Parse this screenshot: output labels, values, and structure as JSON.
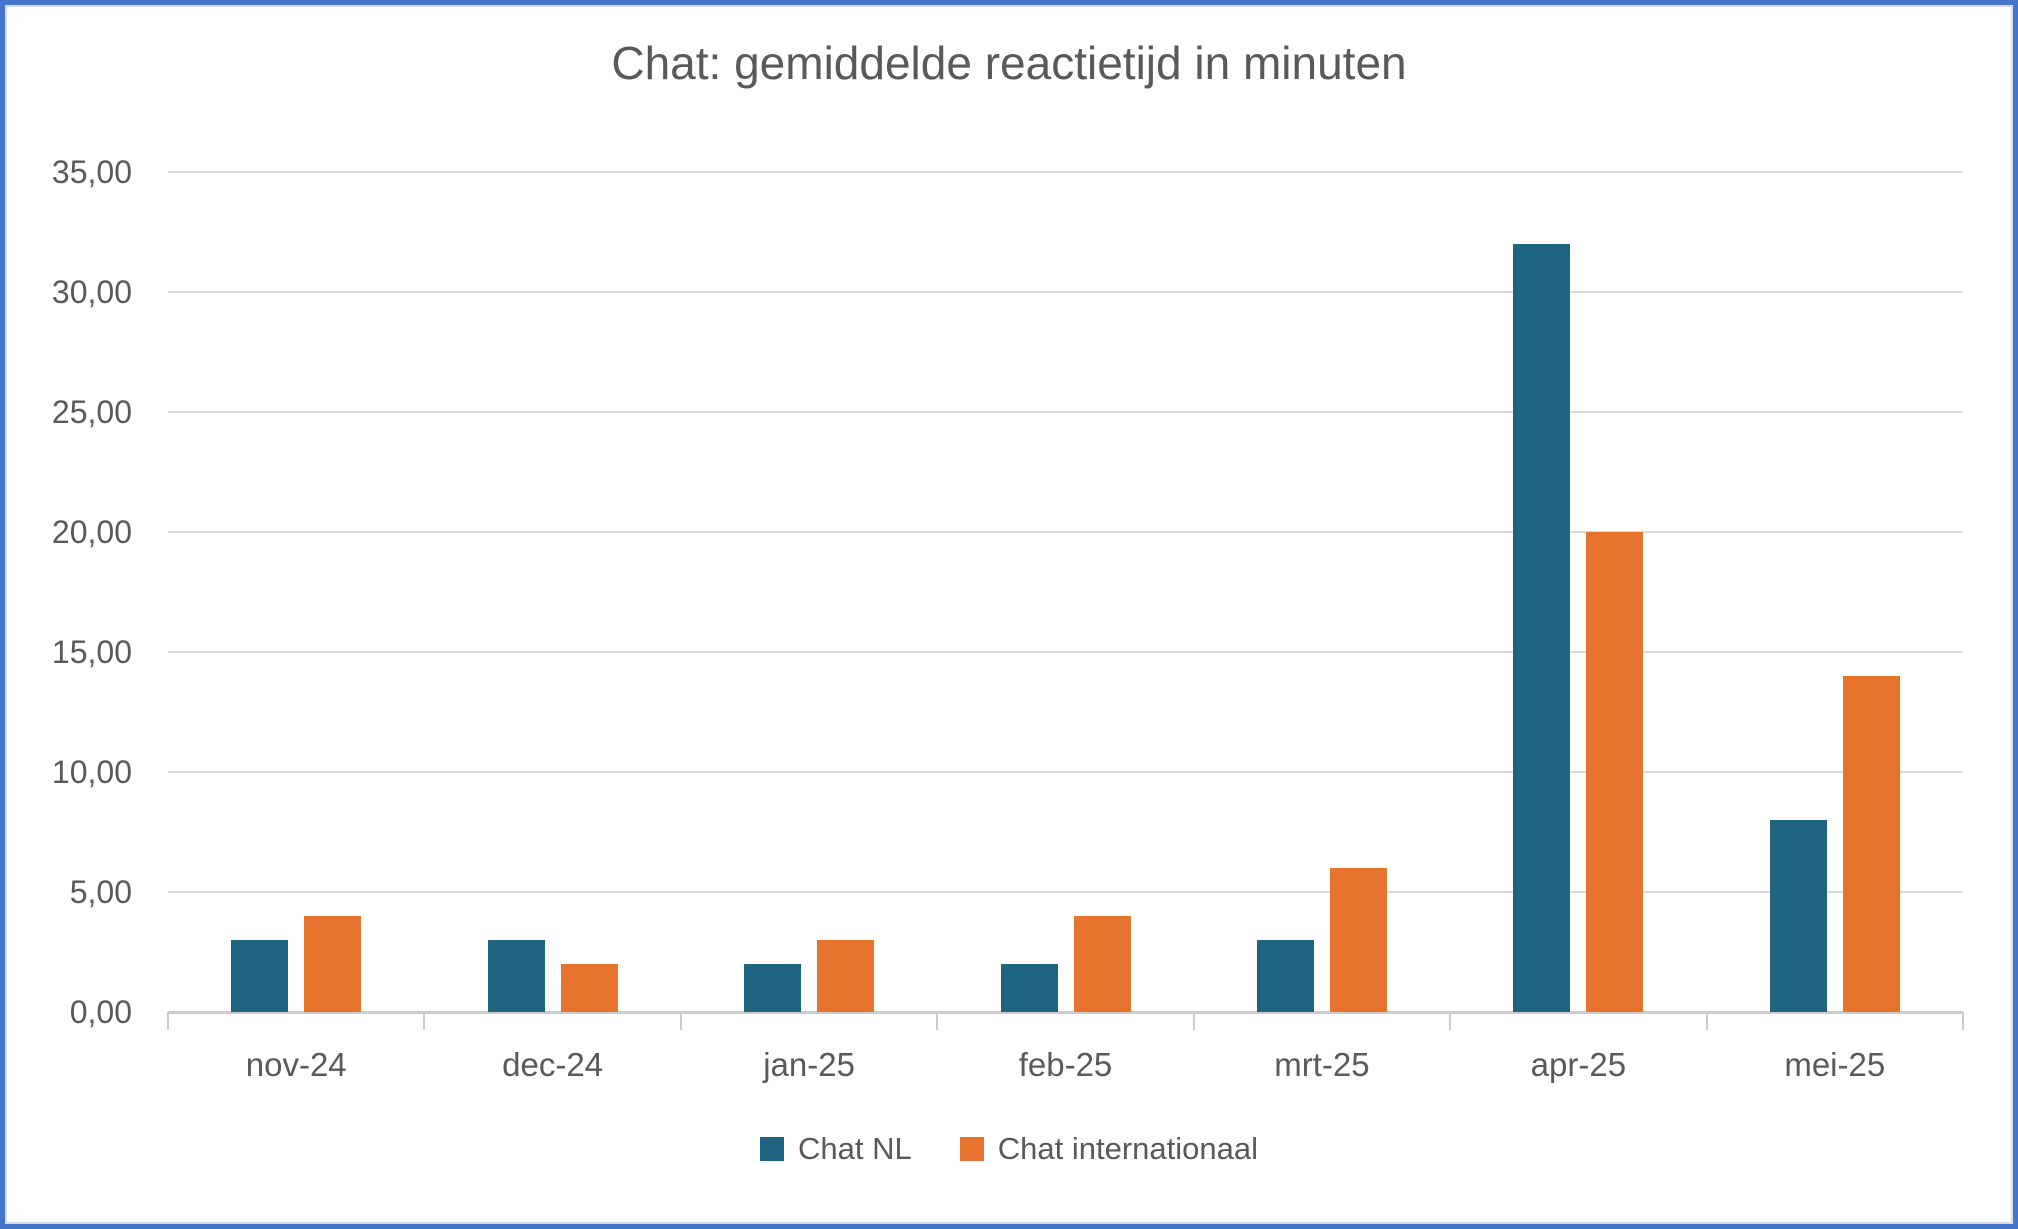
{
  "window": {
    "background": "#ffffff",
    "frame_border_color": "#4575c8",
    "inner_edge_color": "#d9dce8"
  },
  "chart_data": {
    "type": "bar",
    "title": "Chat: gemiddelde reactietijd in minuten",
    "categories": [
      "nov-24",
      "dec-24",
      "jan-25",
      "feb-25",
      "mrt-25",
      "apr-25",
      "mei-25"
    ],
    "series": [
      {
        "name": "Chat NL",
        "color": "#1E6581",
        "values": [
          3,
          3,
          2,
          2,
          3,
          32,
          8
        ]
      },
      {
        "name": "Chat internationaal",
        "color": "#E8732C",
        "values": [
          4,
          2,
          3,
          4,
          6,
          20,
          14
        ]
      }
    ],
    "xlabel": "",
    "ylabel": "",
    "ylim": [
      0,
      35
    ],
    "ytick_step": 5,
    "ytick_labels": [
      "0,00",
      "5,00",
      "10,00",
      "15,00",
      "20,00",
      "25,00",
      "30,00",
      "35,00"
    ],
    "grid": true,
    "legend_position": "bottom",
    "text_color": "#595959",
    "gridline_color": "#d9d9d9",
    "axis_color": "#cccccc"
  }
}
